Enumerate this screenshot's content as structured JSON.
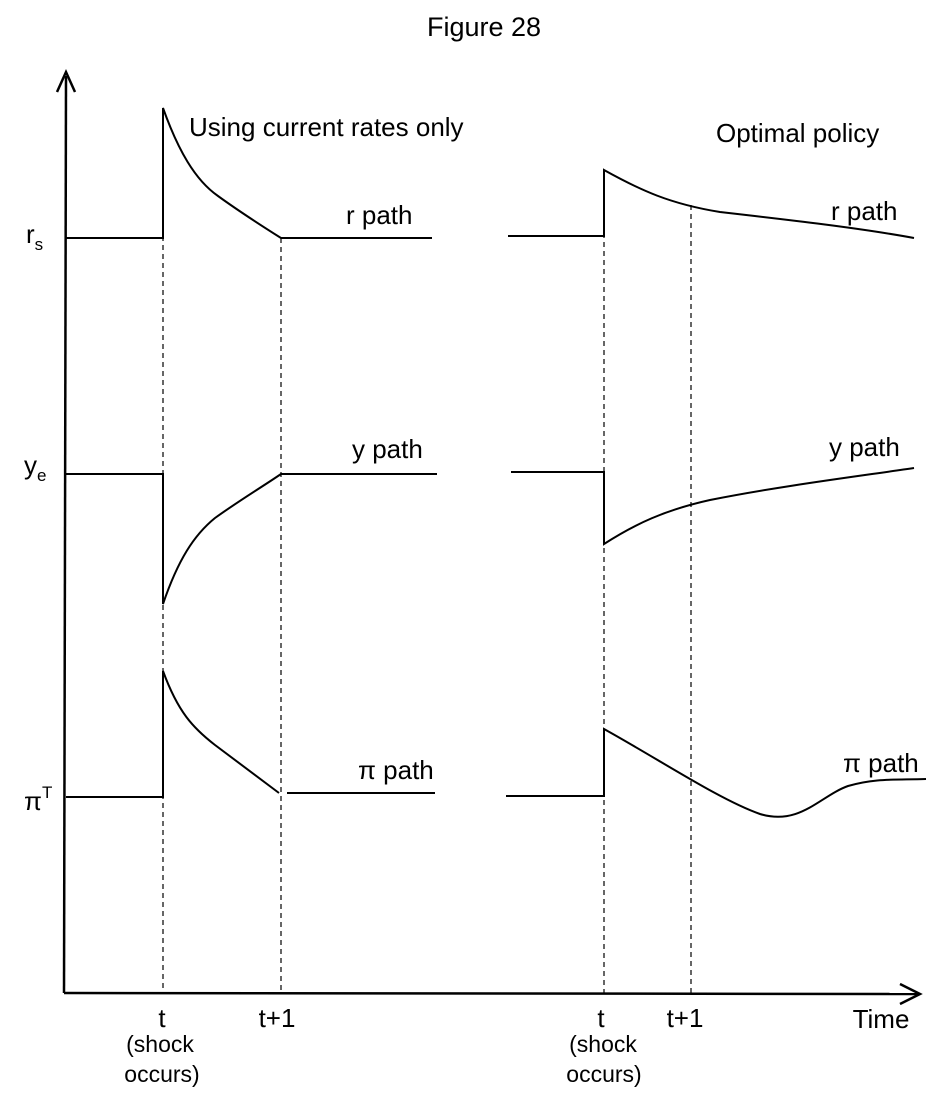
{
  "figure": {
    "title": "Figure 28",
    "panels": {
      "left": {
        "title": "Using current rates only"
      },
      "right": {
        "title": "Optimal policy"
      }
    },
    "y_axis": {
      "levels": [
        {
          "id": "rs",
          "main": "r",
          "sub": "s"
        },
        {
          "id": "ye",
          "main": "y",
          "sub": "e"
        },
        {
          "id": "piT",
          "main": "π",
          "sup": "T"
        }
      ]
    },
    "x_axis": {
      "label": "Time",
      "ticks": {
        "left_t": "t",
        "left_t_note_1": "(shock",
        "left_t_note_2": "occurs)",
        "left_t1": "t+1",
        "right_t": "t",
        "right_t_note_1": "(shock",
        "right_t_note_2": "occurs)",
        "right_t1": "t+1"
      }
    },
    "paths": {
      "left": {
        "r": "r path",
        "y": "y path",
        "pi": "π path"
      },
      "right": {
        "r": "r path",
        "y": "y path",
        "pi": "π path"
      }
    }
  }
}
